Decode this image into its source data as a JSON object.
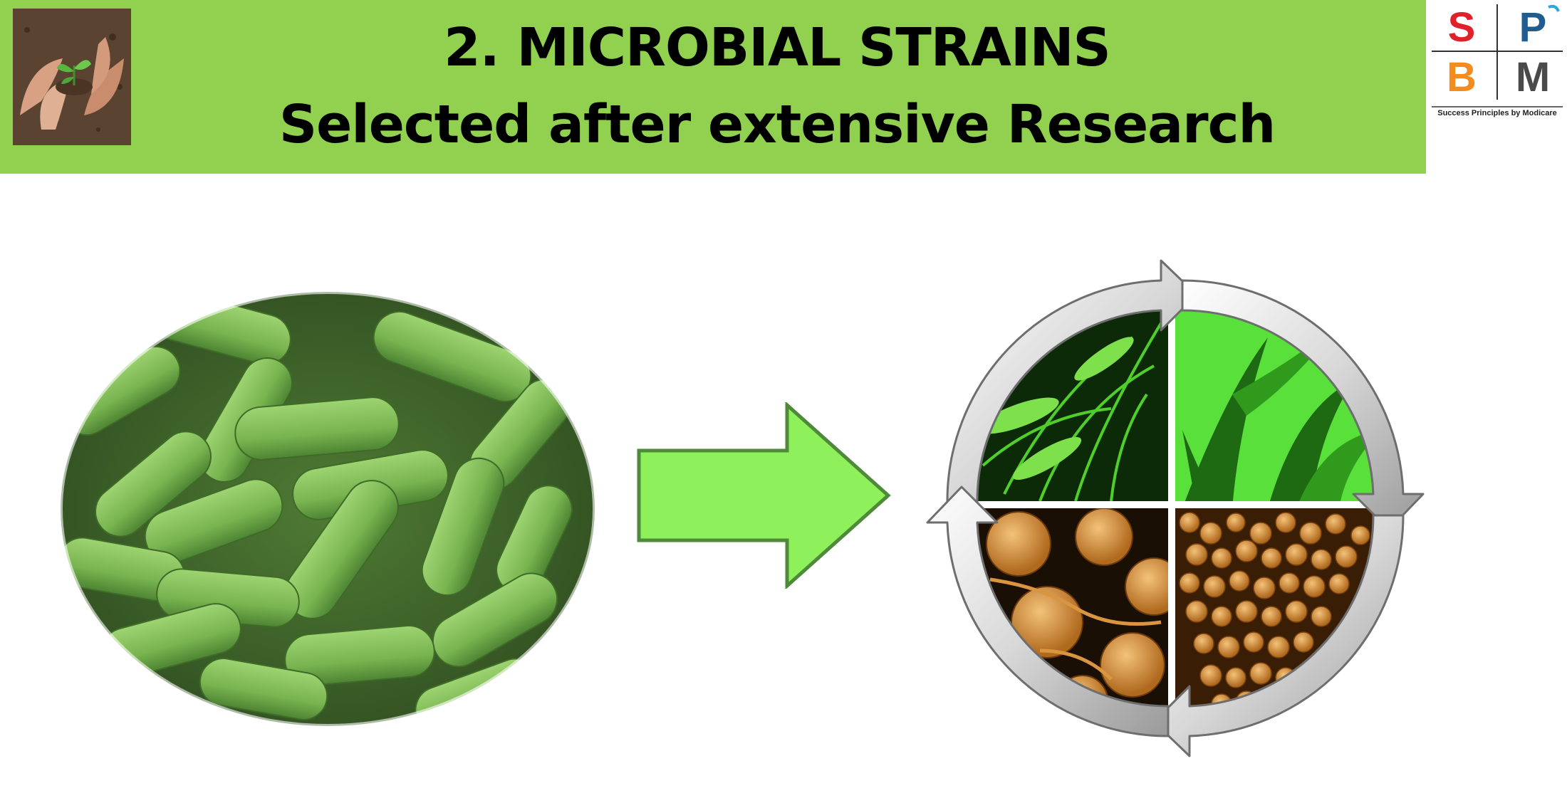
{
  "header": {
    "title_line1": "2. MICROBIAL STRAINS",
    "title_line2": "Selected after extensive Research",
    "background": "#92d050"
  },
  "logo": {
    "letters": [
      "S",
      "P",
      "B",
      "M"
    ],
    "tagline": "Success Principles by Modicare",
    "colors": {
      "S": "#e0202a",
      "P": "#1f5c8f",
      "B": "#f28c1e",
      "M": "#4a4a4a"
    }
  },
  "images": {
    "thumbnail": "hands-holding-seedling-image",
    "bacteria": "green-rod-bacteria-microscopy-image",
    "cycle": "crop-and-microbe-cycle-image"
  },
  "arrow": {
    "fill": "#8ef05a",
    "stroke": "#4f8a3a"
  }
}
